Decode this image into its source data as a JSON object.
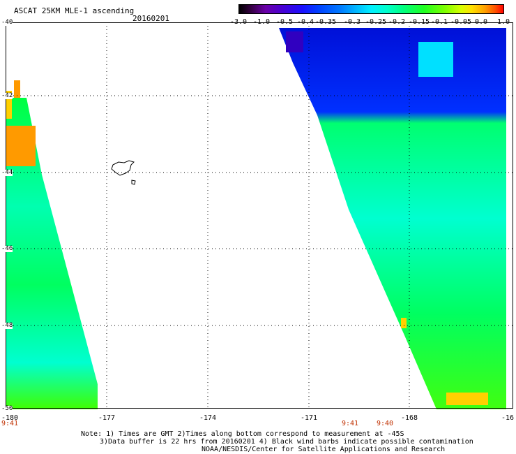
{
  "header": {
    "title": "ASCAT 25KM MLE-1 ascending",
    "date": "20160201"
  },
  "colorbar": {
    "tick_labels": [
      "-3.0",
      "-1.0",
      "-0.5",
      "-0.4",
      "-0.35",
      "-0.3",
      "-0.25",
      "-0.2",
      "-0.15",
      "-0.1",
      "-0.05",
      "0.0",
      "1.0"
    ]
  },
  "map": {
    "lat_labels": [
      "-40",
      "-42",
      "-44",
      "-46",
      "-48",
      "-50"
    ],
    "lon_labels": [
      "-180",
      "-177",
      "-174",
      "-171",
      "-168",
      "-16"
    ],
    "time_labels": [
      "9:41",
      "9:41",
      "9:40"
    ],
    "west_swath_color": "#00ff66",
    "east_swath_color": "#00ff88",
    "high_value_color": "#ff9a00",
    "low_value_color": "#0010e0"
  },
  "footer": {
    "line1": "Note: 1) Times are GMT 2)Times along bottom correspond to measurement at -45S",
    "line2": "3)Data buffer is 22 hrs from 20160201 4) Black wind barbs indicate possible contamination",
    "line3": "NOAA/NESDIS/Center for Satellite Applications and Research"
  }
}
